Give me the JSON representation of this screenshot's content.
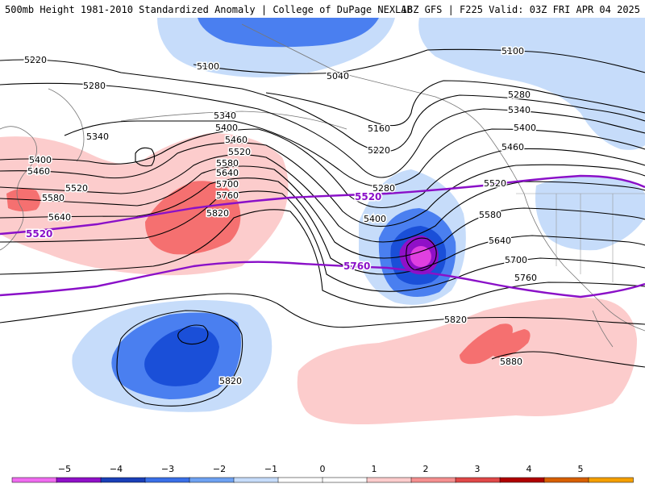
{
  "header": {
    "left": "500mb Height 1981-2010 Standardized Anomaly | College of DuPage NEXLAB",
    "right": "18Z GFS | F225 Valid: 03Z FRI APR 04 2025"
  },
  "height_contours": {
    "labels": [
      "5100",
      "5100",
      "5040",
      "5160",
      "5220",
      "5220",
      "5280",
      "5280",
      "5280",
      "5340",
      "5340",
      "5340",
      "5400",
      "5400",
      "5400",
      "5400",
      "5460",
      "5460",
      "5460",
      "5520",
      "5520",
      "5520",
      "5580",
      "5580",
      "5580",
      "5640",
      "5640",
      "5640",
      "5700",
      "5700",
      "5760",
      "5760",
      "5820",
      "5820",
      "5820",
      "5880"
    ]
  },
  "climo_contours": {
    "labels": [
      "5520",
      "5520",
      "5760"
    ],
    "color": "#8a10c8"
  },
  "anomaly_colors": {
    "strong_negative": "#e040e0",
    "negative_3": "#1a4fd8",
    "negative_2": "#4a7ff0",
    "negative_1": "#c6dcfa",
    "positive_1": "#fccccc",
    "positive_2": "#f57070"
  },
  "colorbar": {
    "ticks": [
      "−5",
      "−4",
      "−3",
      "−2",
      "−1",
      "0",
      "1",
      "2",
      "3",
      "4",
      "5"
    ],
    "colors": [
      "#f06cf0",
      "#9010c8",
      "#1a3fb8",
      "#3a70e8",
      "#6fa2f2",
      "#c6dcfa",
      "#ffffff",
      "#ffffff",
      "#fccccc",
      "#f59090",
      "#e04848",
      "#b00000",
      "#d86000",
      "#f5a000"
    ]
  }
}
